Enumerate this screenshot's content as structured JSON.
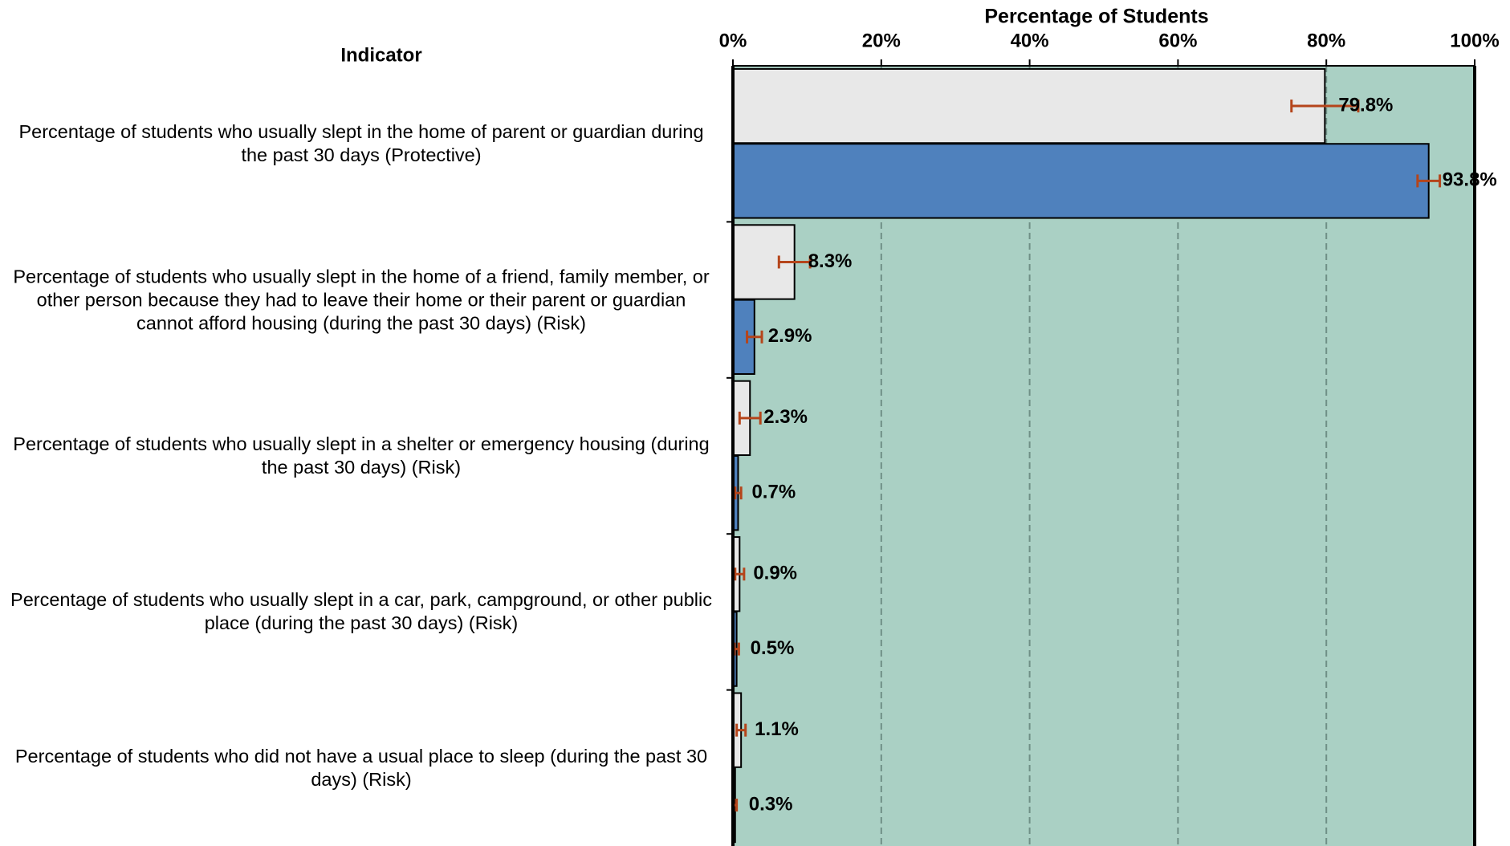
{
  "chart_data": {
    "type": "bar",
    "orientation": "horizontal",
    "header": "Indicator",
    "xlabel": "Percentage of Students",
    "categories": [
      "Percentage of students who usually slept in the home of parent or guardian during the past 30 days (Protective)",
      "Percentage of students who usually slept in the home of a friend, family member, or other person because they had to leave their home or their parent or guardian cannot afford housing (during the past 30 days) (Risk)",
      "Percentage of students who usually slept in a shelter or emergency housing (during the past 30 days) (Risk)",
      "Percentage of students who usually slept in a car, park, campground, or other public place (during the past 30 days) (Risk)",
      "Percentage of students who did not have a usual place to sleep (during the past 30 days) (Risk)"
    ],
    "series": [
      {
        "color": "#e8e8e8",
        "values": [
          79.8,
          8.3,
          2.3,
          0.9,
          1.1
        ],
        "value_labels": [
          "79.8%",
          "8.3%",
          "2.3%",
          "0.9%",
          "1.1%"
        ],
        "errors": [
          4.5,
          2.1,
          1.4,
          0.6,
          0.6
        ]
      },
      {
        "color": "#4f81bd",
        "values": [
          93.8,
          2.9,
          0.7,
          0.5,
          0.3
        ],
        "value_labels": [
          "93.8%",
          "2.9%",
          "0.7%",
          "0.5%",
          "0.3%"
        ],
        "errors": [
          1.5,
          1.0,
          0.4,
          0.3,
          0.2
        ]
      }
    ],
    "error_color": "#b5451b",
    "plot_background": "#aad0c4",
    "xlim": [
      0,
      100
    ],
    "xticks": [
      {
        "value": 0,
        "label": "0%"
      },
      {
        "value": 20,
        "label": "20%"
      },
      {
        "value": 40,
        "label": "40%"
      },
      {
        "value": 60,
        "label": "60%"
      },
      {
        "value": 80,
        "label": "80%"
      },
      {
        "value": 100,
        "label": "100%"
      }
    ],
    "grid": true
  }
}
